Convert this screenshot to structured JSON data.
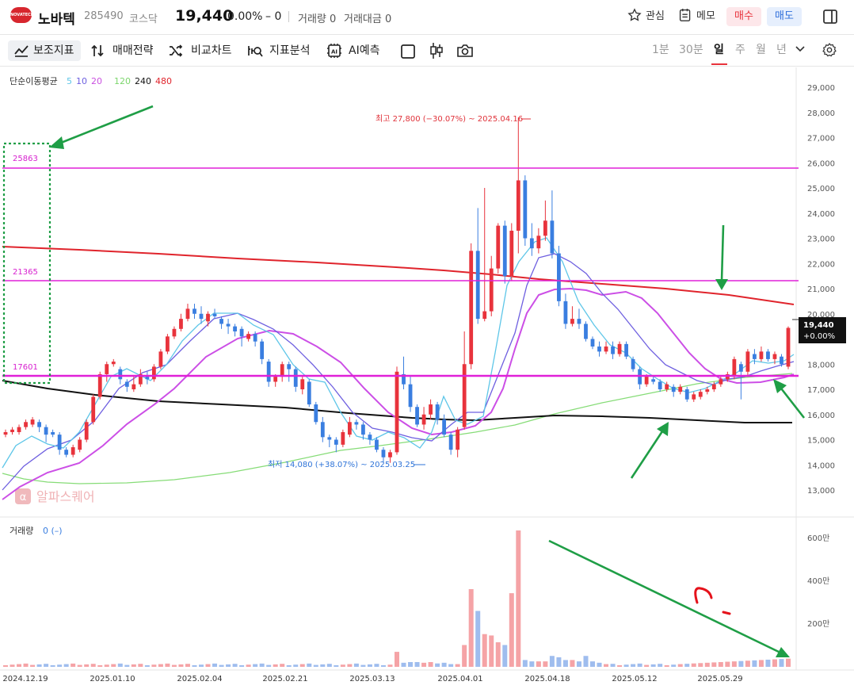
{
  "header": {
    "logo_text": "NOVATECH",
    "name": "노바텍",
    "code": "285490",
    "market": "코스닥",
    "price": "19,440",
    "change_pct": "0.00%",
    "change": "– 0",
    "volume_label": "거래량 0",
    "amount_label": "거래대금 0",
    "fav_label": "관심",
    "memo_label": "메모",
    "buy_label": "매수",
    "sell_label": "매도"
  },
  "toolbar": {
    "tools": [
      "보조지표",
      "매매전략",
      "비교차트",
      "지표분석",
      "AI예측"
    ],
    "periods": [
      "1분",
      "30분",
      "일",
      "주",
      "월",
      "년"
    ],
    "active_period": "일"
  },
  "legend": {
    "ma_title": "단순이동평균",
    "ma_values": [
      {
        "label": "5",
        "color": "#5ec6e8"
      },
      {
        "label": "10",
        "color": "#6d5fe0"
      },
      {
        "label": "20",
        "color": "#c94fe0"
      },
      {
        "label": "120",
        "color": "#7cd66c"
      },
      {
        "label": "240",
        "color": "#111111"
      },
      {
        "label": "480",
        "color": "#e0242c"
      }
    ],
    "volume_title": "거래량",
    "volume_value": "0 (–)"
  },
  "annotations": {
    "high": "최고 27,800 (−30.07%) ~ 2025.04.16",
    "low": "최저 14,080 (+38.07%) ~ 2025.03.25",
    "levels": [
      "25863",
      "21365",
      "17601"
    ],
    "current_price_tag": "19,440",
    "current_pct_tag": "+0.00%",
    "watermark": "알파스퀘어"
  },
  "chart_data": {
    "type": "candlestick",
    "y_ticks": [
      "29,000",
      "28,000",
      "27,000",
      "26,000",
      "25,000",
      "24,000",
      "23,000",
      "22,000",
      "21,000",
      "20,000",
      "19,000",
      "18,000",
      "17,000",
      "16,000",
      "15,000",
      "14,000",
      "13,000"
    ],
    "volume_ticks": [
      "600만",
      "400만",
      "200만"
    ],
    "x_labels": [
      "2024.12.19",
      "2025.01.10",
      "2025.02.04",
      "2025.02.21",
      "2025.03.13",
      "2025.04.01",
      "2025.04.18",
      "2025.05.12",
      "2025.05.29"
    ],
    "horizontal_levels": [
      25863,
      21365,
      17601
    ],
    "high": 27800,
    "low": 14080,
    "last": 19440
  },
  "colors": {
    "up": "#e8333c",
    "down": "#3a7ee0",
    "level": "#e020d8",
    "arrow": "#1f9e46",
    "vol_up": "#f5a3a6",
    "vol_down": "#9fbdee"
  }
}
